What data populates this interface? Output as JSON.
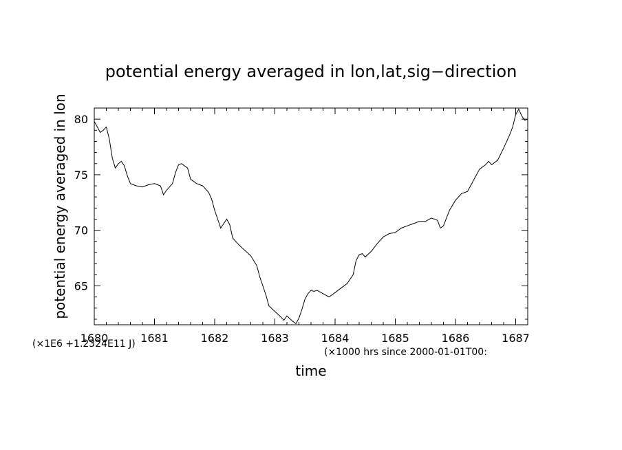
{
  "chart_data": {
    "type": "line",
    "title": "potential energy averaged in lon,lat,sig−direction",
    "xlabel": "time",
    "ylabel": "potential energy averaged in lon",
    "x_unit_note": "(×1000 hrs  since 2000-01-01T00:",
    "y_scale_note": "(×1E6 +1.2324E11 J)",
    "xlim": [
      1680,
      1687.2
    ],
    "ylim": [
      61.5,
      81
    ],
    "x_ticks": [
      1680,
      1681,
      1682,
      1683,
      1684,
      1685,
      1686,
      1687
    ],
    "x_tick_labels": [
      "1680",
      "1681",
      "1682",
      "1683",
      "1684",
      "1685",
      "1686",
      "1687"
    ],
    "y_ticks": [
      65,
      70,
      75,
      80
    ],
    "y_tick_labels": [
      "65",
      "70",
      "75",
      "80"
    ],
    "grid": false,
    "legend": "none",
    "line_color": "#000000",
    "series": [
      {
        "x": [
          1680.0,
          1680.05,
          1680.1,
          1680.15,
          1680.2,
          1680.25,
          1680.3,
          1680.35,
          1680.4,
          1680.45,
          1680.5,
          1680.55,
          1680.6,
          1680.7,
          1680.8,
          1680.9,
          1681.0,
          1681.1,
          1681.15,
          1681.2,
          1681.3,
          1681.35,
          1681.4,
          1681.45,
          1681.5,
          1681.55,
          1681.6,
          1681.7,
          1681.8,
          1681.9,
          1681.95,
          1682.0,
          1682.05,
          1682.1,
          1682.15,
          1682.2,
          1682.25,
          1682.3,
          1682.4,
          1682.5,
          1682.6,
          1682.7,
          1682.75,
          1682.8,
          1682.85,
          1682.9,
          1683.0,
          1683.1,
          1683.15,
          1683.2,
          1683.3,
          1683.35,
          1683.4,
          1683.45,
          1683.5,
          1683.55,
          1683.6,
          1683.65,
          1683.7,
          1683.8,
          1683.9,
          1684.0,
          1684.1,
          1684.2,
          1684.3,
          1684.35,
          1684.4,
          1684.45,
          1684.5,
          1684.6,
          1684.7,
          1684.8,
          1684.9,
          1685.0,
          1685.1,
          1685.2,
          1685.3,
          1685.4,
          1685.5,
          1685.6,
          1685.7,
          1685.75,
          1685.8,
          1685.9,
          1686.0,
          1686.1,
          1686.2,
          1686.3,
          1686.4,
          1686.5,
          1686.55,
          1686.6,
          1686.7,
          1686.8,
          1686.9,
          1686.95,
          1687.0,
          1687.05,
          1687.1,
          1687.15,
          1687.2
        ],
        "y": [
          79.8,
          79.3,
          78.8,
          79.0,
          79.3,
          78.2,
          76.5,
          75.6,
          76.0,
          76.2,
          75.8,
          74.9,
          74.2,
          74.0,
          73.9,
          74.1,
          74.2,
          74.0,
          73.2,
          73.6,
          74.2,
          75.2,
          75.9,
          76.0,
          75.8,
          75.6,
          74.6,
          74.2,
          74.0,
          73.4,
          72.8,
          71.8,
          71.0,
          70.2,
          70.6,
          71.0,
          70.5,
          69.3,
          68.7,
          68.2,
          67.7,
          66.8,
          65.8,
          65.0,
          64.2,
          63.2,
          62.7,
          62.2,
          61.9,
          62.3,
          61.8,
          61.6,
          62.1,
          62.9,
          63.8,
          64.3,
          64.6,
          64.5,
          64.6,
          64.3,
          64.0,
          64.4,
          64.8,
          65.2,
          66.0,
          67.3,
          67.8,
          67.9,
          67.6,
          68.1,
          68.8,
          69.4,
          69.7,
          69.8,
          70.2,
          70.4,
          70.6,
          70.8,
          70.8,
          71.1,
          70.9,
          70.2,
          70.4,
          71.8,
          72.7,
          73.3,
          73.5,
          74.5,
          75.5,
          75.9,
          76.2,
          75.9,
          76.3,
          77.4,
          78.6,
          79.3,
          80.4,
          80.9,
          80.3,
          79.9,
          80.0
        ]
      }
    ]
  }
}
